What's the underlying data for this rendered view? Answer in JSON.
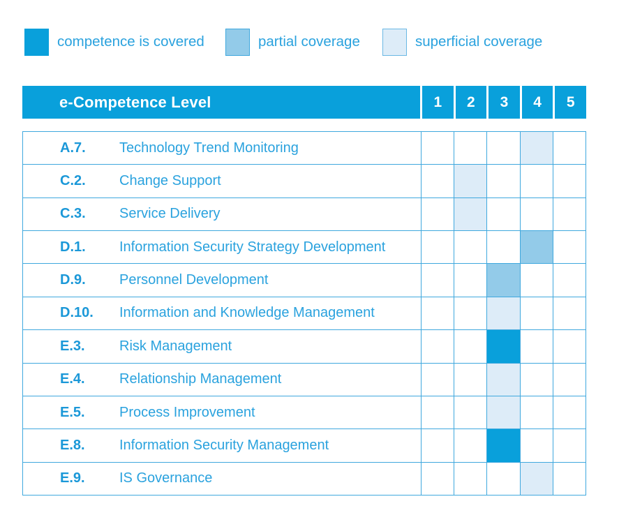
{
  "colors": {
    "covered": "#09a0db",
    "partial": "#93cbe9",
    "superficial": "#ddecf8",
    "border": "#3fa8de",
    "header_bg": "#09a0db",
    "header_text": "#ffffff",
    "label_code": "#1b98d8",
    "label_title": "#2aa2de",
    "legend_text": "#2aa2de"
  },
  "chart_data": {
    "type": "heatmap",
    "title": "e-Competence Level",
    "columns": [
      "1",
      "2",
      "3",
      "4",
      "5"
    ],
    "legend_items": [
      {
        "label": "competence is covered",
        "coverage": "covered"
      },
      {
        "label": "partial coverage",
        "coverage": "partial"
      },
      {
        "label": "superficial coverage",
        "coverage": "superficial"
      }
    ],
    "rows": [
      {
        "code": "A.7.",
        "label": "Technology Trend Monitoring",
        "values": {
          "4": "superficial"
        }
      },
      {
        "code": "C.2.",
        "label": "Change Support",
        "values": {
          "2": "superficial"
        }
      },
      {
        "code": "C.3.",
        "label": "Service Delivery",
        "values": {
          "2": "superficial"
        }
      },
      {
        "code": "D.1.",
        "label": "Information Security Strategy Development",
        "values": {
          "4": "partial"
        }
      },
      {
        "code": "D.9.",
        "label": "Personnel Development",
        "values": {
          "3": "partial"
        }
      },
      {
        "code": "D.10.",
        "label": "Information and Knowledge Management",
        "values": {
          "3": "superficial"
        }
      },
      {
        "code": "E.3.",
        "label": "Risk Management",
        "values": {
          "3": "covered"
        }
      },
      {
        "code": "E.4.",
        "label": "Relationship Management",
        "values": {
          "3": "superficial"
        }
      },
      {
        "code": "E.5.",
        "label": "Process Improvement",
        "values": {
          "3": "superficial"
        }
      },
      {
        "code": "E.8.",
        "label": "Information Security Management",
        "values": {
          "3": "covered"
        }
      },
      {
        "code": "E.9.",
        "label": "IS Governance",
        "values": {
          "4": "superficial"
        }
      }
    ]
  }
}
